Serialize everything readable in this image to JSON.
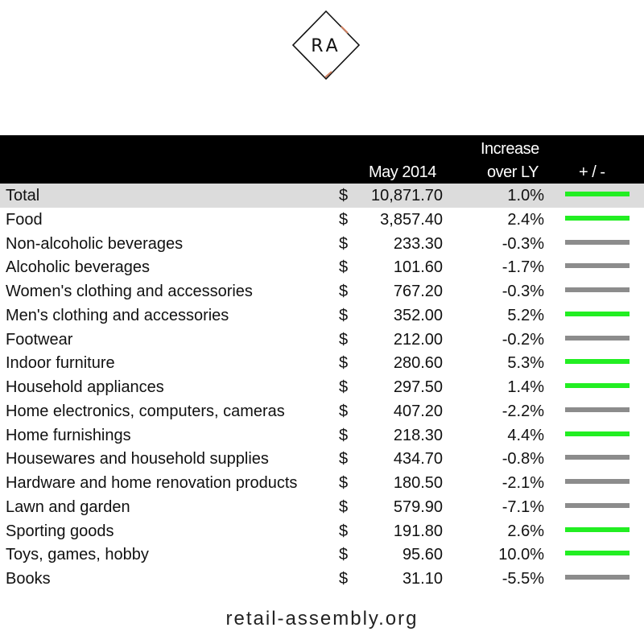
{
  "logo": {
    "text": "RA"
  },
  "header": {
    "month_label": "May 2014",
    "increase_line1": "Increase",
    "increase_line2": "over LY",
    "change_label": "+ / -"
  },
  "colors": {
    "positive": "#22ee22",
    "negative": "#8c8c8c",
    "header_bg": "#000000",
    "total_bg": "#dcdcdc"
  },
  "rows": [
    {
      "name": "Total",
      "currency": "$",
      "value": "10,871.70",
      "pct": "1.0%",
      "trend": "positive"
    },
    {
      "name": "Food",
      "currency": "$",
      "value": "3,857.40",
      "pct": "2.4%",
      "trend": "positive"
    },
    {
      "name": "Non-alcoholic beverages",
      "currency": "$",
      "value": "233.30",
      "pct": "-0.3%",
      "trend": "negative"
    },
    {
      "name": "Alcoholic beverages",
      "currency": "$",
      "value": "101.60",
      "pct": "-1.7%",
      "trend": "negative"
    },
    {
      "name": "Women's clothing and accessories",
      "currency": "$",
      "value": "767.20",
      "pct": "-0.3%",
      "trend": "negative"
    },
    {
      "name": "Men's clothing and accessories",
      "currency": "$",
      "value": "352.00",
      "pct": "5.2%",
      "trend": "positive"
    },
    {
      "name": "Footwear",
      "currency": "$",
      "value": "212.00",
      "pct": "-0.2%",
      "trend": "negative"
    },
    {
      "name": "Indoor furniture",
      "currency": "$",
      "value": "280.60",
      "pct": "5.3%",
      "trend": "positive"
    },
    {
      "name": "Household appliances",
      "currency": "$",
      "value": "297.50",
      "pct": "1.4%",
      "trend": "positive"
    },
    {
      "name": "Home electronics, computers, cameras",
      "currency": "$",
      "value": "407.20",
      "pct": "-2.2%",
      "trend": "negative"
    },
    {
      "name": "Home furnishings",
      "currency": "$",
      "value": "218.30",
      "pct": "4.4%",
      "trend": "positive"
    },
    {
      "name": "Housewares and household supplies",
      "currency": "$",
      "value": "434.70",
      "pct": "-0.8%",
      "trend": "negative"
    },
    {
      "name": "Hardware and home renovation products",
      "currency": "$",
      "value": "180.50",
      "pct": "-2.1%",
      "trend": "negative"
    },
    {
      "name": "Lawn and garden",
      "currency": "$",
      "value": "579.90",
      "pct": "-7.1%",
      "trend": "negative"
    },
    {
      "name": "Sporting goods",
      "currency": "$",
      "value": "191.80",
      "pct": "2.6%",
      "trend": "positive"
    },
    {
      "name": "Toys, games, hobby",
      "currency": "$",
      "value": "95.60",
      "pct": "10.0%",
      "trend": "positive"
    },
    {
      "name": "Books",
      "currency": "$",
      "value": "31.10",
      "pct": "-5.5%",
      "trend": "negative"
    }
  ],
  "footer": {
    "site": "retail-assembly.org"
  }
}
